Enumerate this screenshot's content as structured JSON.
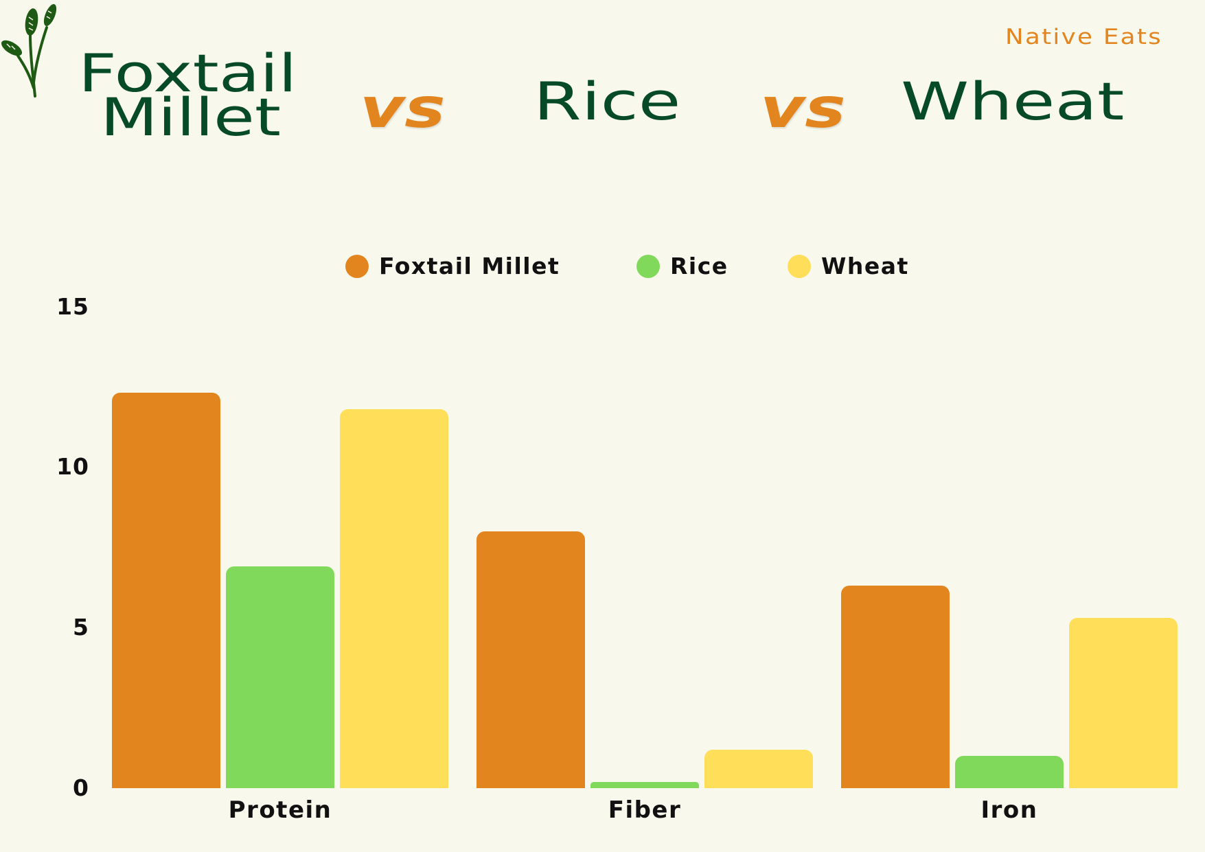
{
  "brand": "Native Eats",
  "header": {
    "items": [
      {
        "line1": "Foxtail",
        "line2": "Millet"
      },
      {
        "vs": "vs"
      },
      {
        "label": "Rice"
      },
      {
        "vs": "vs"
      },
      {
        "label": "Wheat"
      }
    ]
  },
  "icons": {
    "logo": "wheat-stalk-icon"
  },
  "colors": {
    "background": "#F9F8EC",
    "title": "#064A27",
    "accent": "#E3851F",
    "foxtail_millet": "#E3851F",
    "rice": "#80D95A",
    "wheat": "#FFDE59"
  },
  "legend": [
    {
      "label": "Foxtail Millet",
      "color": "#E3851F"
    },
    {
      "label": "Rice",
      "color": "#80D95A"
    },
    {
      "label": "Wheat",
      "color": "#FFDE59"
    }
  ],
  "chart_data": {
    "type": "bar",
    "title": "Foxtail Millet vs Rice vs Wheat",
    "xlabel": "",
    "ylabel": "",
    "categories": [
      "Protein",
      "Fiber",
      "Iron"
    ],
    "series": [
      {
        "name": "Foxtail Millet",
        "color": "#E3851F",
        "values": [
          12.3,
          8.0,
          6.3
        ]
      },
      {
        "name": "Rice",
        "color": "#80D95A",
        "values": [
          6.9,
          0.2,
          1.0
        ]
      },
      {
        "name": "Wheat",
        "color": "#FFDE59",
        "values": [
          11.8,
          1.2,
          5.3
        ]
      }
    ],
    "yticks": [
      "0",
      "5",
      "10",
      "15"
    ],
    "ylim": [
      0,
      15
    ],
    "grid": false,
    "legend_position": "top"
  }
}
